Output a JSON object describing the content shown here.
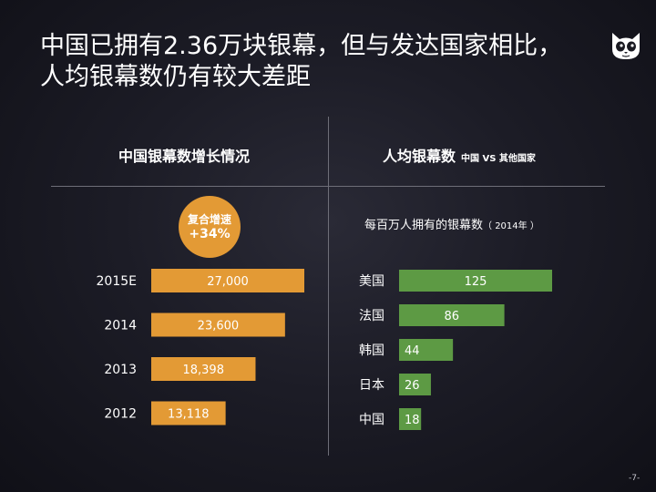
{
  "slide": {
    "title_line1": "中国已拥有2.36万块银幕，但与发达国家相比，",
    "title_line2": "人均银幕数仍有较大差距",
    "logo_icon": "cat-face-icon",
    "page_number": "-7-"
  },
  "left_panel": {
    "title": "中国银幕数增长情况",
    "badge_line1": "复合增速",
    "badge_line2": "+34%"
  },
  "right_panel": {
    "title": "人均银幕数",
    "title_suffix": "中国 VS 其他国家",
    "subtitle": "每百万人拥有的银幕数",
    "subtitle_note": "（ 2014年 ）"
  },
  "colors": {
    "orange": "#e39a35",
    "green": "#5d9a44"
  },
  "chart_data": [
    {
      "type": "bar",
      "orientation": "horizontal",
      "title": "中国银幕数增长情况",
      "categories": [
        "2015E",
        "2014",
        "2013",
        "2012"
      ],
      "values": [
        27000,
        23600,
        18398,
        13118
      ],
      "value_labels": [
        "27,000",
        "23,600",
        "18,398",
        "13,118"
      ],
      "xlim": [
        0,
        27000
      ],
      "color": "#e39a35"
    },
    {
      "type": "bar",
      "orientation": "horizontal",
      "title": "每百万人拥有的银幕数（ 2014年 ）",
      "categories": [
        "美国",
        "法国",
        "韩国",
        "日本",
        "中国"
      ],
      "values": [
        125,
        86,
        44,
        26,
        18
      ],
      "value_labels": [
        "125",
        "86",
        "44",
        "26",
        "18"
      ],
      "xlim": [
        0,
        125
      ],
      "color": "#5d9a44"
    }
  ]
}
